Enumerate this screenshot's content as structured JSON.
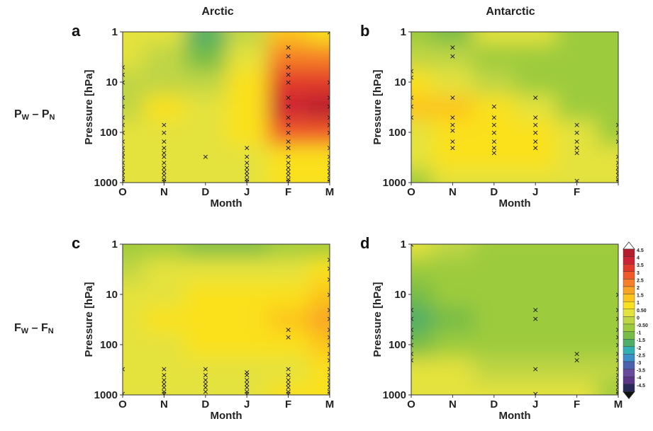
{
  "figure": {
    "col_titles": [
      "Arctic",
      "Antarctic"
    ],
    "row_labels": [
      {
        "main": "P",
        "sub1": "W",
        "sep": " – P",
        "sub2": "N"
      },
      {
        "main": "F",
        "sub1": "W",
        "sep": " – F",
        "sub2": "N"
      }
    ]
  },
  "colorbar": {
    "labels": [
      "4.5",
      "4",
      "3.5",
      "3",
      "2.5",
      "2",
      "1.5",
      "1",
      "0.50",
      "0",
      "-0.50",
      "-1",
      "-1.5",
      "-2",
      "-2.5",
      "-3",
      "-3.5",
      "-4",
      "-4.5"
    ],
    "colors": [
      "#b51d2e",
      "#cc2233",
      "#e23a2a",
      "#f0592a",
      "#f67f27",
      "#f9a523",
      "#fcc51e",
      "#fae11e",
      "#e4e23c",
      "#bfd544",
      "#9ccb3e",
      "#76bc46",
      "#4fae68",
      "#31b0b3",
      "#3a8fc8",
      "#4b63af",
      "#6a4a9c",
      "#5a3588",
      "#2a2a5a"
    ],
    "top_arrow": "#ffffff",
    "bottom_arrow": "#111111",
    "zero_contour_color": "#ffffff"
  },
  "chart_data": [
    {
      "type": "heatmap",
      "panel_label": "a",
      "region": "Arctic",
      "quantity": "P",
      "xlabel": "Month",
      "ylabel": "Pressure [hPa]",
      "x_ticks": [
        "O",
        "N",
        "D",
        "J",
        "F",
        "M"
      ],
      "y_ticks": [
        "1",
        "10",
        "100",
        "1000"
      ],
      "y_scale": "log-reversed",
      "ylim": [
        1000,
        1
      ],
      "cells": [
        [
          0.3,
          0.3,
          -1.5,
          0.2,
          1.5,
          1.0
        ],
        [
          0.3,
          0.2,
          -1.0,
          0.6,
          2.5,
          2.5
        ],
        [
          0.2,
          0.2,
          0.0,
          1.2,
          3.5,
          3.5
        ],
        [
          0.2,
          1.0,
          0.3,
          1.0,
          4.0,
          4.5
        ],
        [
          0.3,
          0.3,
          0.3,
          0.8,
          3.0,
          3.0
        ],
        [
          0.3,
          0.3,
          0.3,
          0.5,
          1.0,
          1.0
        ],
        [
          0.4,
          0.4,
          0.4,
          0.5,
          0.8,
          0.8
        ]
      ],
      "cross_marks": [
        {
          "month": "O",
          "pressures": [
            5,
            7,
            10,
            20,
            30,
            50,
            70,
            100,
            150,
            200,
            250,
            300,
            400,
            500,
            600,
            700,
            850,
            1000
          ]
        },
        {
          "month": "N",
          "pressures": [
            70,
            100,
            150,
            200,
            250,
            300,
            400,
            500,
            600,
            700,
            850,
            1000
          ]
        },
        {
          "month": "D",
          "pressures": [
            300
          ]
        },
        {
          "month": "J",
          "pressures": [
            200,
            300,
            400,
            500,
            600,
            700,
            850,
            1000
          ]
        },
        {
          "month": "F",
          "pressures": [
            2,
            3,
            5,
            7,
            10,
            20,
            30,
            50,
            70,
            100,
            150,
            200,
            300,
            400,
            500,
            600,
            700,
            850,
            1000
          ]
        },
        {
          "month": "M",
          "pressures": [
            1,
            10,
            20,
            30,
            50,
            70,
            100,
            200,
            300,
            400,
            500,
            600,
            700,
            850,
            1000
          ]
        }
      ]
    },
    {
      "type": "heatmap",
      "panel_label": "b",
      "region": "Antarctic",
      "quantity": "P",
      "xlabel": "Month",
      "ylabel": "Pressure [hPa]",
      "x_ticks": [
        "O",
        "N",
        "D",
        "J",
        "F",
        ""
      ],
      "y_ticks": [
        "1",
        "10",
        "100",
        "1000"
      ],
      "y_scale": "log-reversed",
      "ylim": [
        1000,
        1
      ],
      "cells": [
        [
          -0.6,
          -0.8,
          0.3,
          0.3,
          -0.5,
          -0.5
        ],
        [
          0.2,
          0.0,
          -0.6,
          -0.6,
          -0.6,
          -0.6
        ],
        [
          1.2,
          0.6,
          0.2,
          -0.6,
          -0.6,
          -0.6
        ],
        [
          1.7,
          1.4,
          1.0,
          0.6,
          -0.6,
          -0.6
        ],
        [
          0.6,
          1.2,
          1.2,
          0.8,
          0.6,
          -0.6
        ],
        [
          0.6,
          0.8,
          0.8,
          0.8,
          0.6,
          0.3
        ],
        [
          -0.6,
          0.3,
          0.4,
          0.4,
          0.4,
          0.4
        ]
      ],
      "cross_marks": [
        {
          "month": "O",
          "pressures": [
            6,
            8,
            20,
            30,
            50
          ]
        },
        {
          "month": "N",
          "pressures": [
            2,
            3,
            20,
            50,
            70,
            90,
            150,
            200
          ]
        },
        {
          "month": "D",
          "pressures": [
            30,
            50,
            70,
            100,
            150,
            200,
            250
          ]
        },
        {
          "month": "J",
          "pressures": [
            20,
            50,
            70,
            100,
            150,
            200
          ]
        },
        {
          "month": "F",
          "pressures": [
            70,
            100,
            150,
            200,
            250,
            900
          ]
        },
        {
          "month": "M",
          "pressures": [
            70,
            100,
            150,
            300,
            400,
            500,
            600,
            700,
            850,
            1000
          ]
        }
      ]
    },
    {
      "type": "heatmap",
      "panel_label": "c",
      "region": "Arctic",
      "quantity": "F",
      "xlabel": "Month",
      "ylabel": "Pressure [hPa]",
      "x_ticks": [
        "O",
        "N",
        "D",
        "J",
        "F",
        "M"
      ],
      "y_ticks": [
        "1",
        "10",
        "100",
        "1000"
      ],
      "y_scale": "log-reversed",
      "ylim": [
        1000,
        1
      ],
      "cells": [
        [
          -0.6,
          -0.6,
          -1.0,
          -1.0,
          -0.6,
          -0.6
        ],
        [
          0.0,
          0.3,
          0.3,
          0.3,
          0.4,
          0.8
        ],
        [
          0.3,
          0.5,
          1.0,
          0.8,
          1.0,
          1.5
        ],
        [
          0.3,
          1.0,
          1.2,
          1.2,
          1.5,
          2.2
        ],
        [
          0.3,
          0.6,
          0.8,
          0.8,
          1.0,
          1.5
        ],
        [
          0.3,
          0.3,
          0.3,
          0.3,
          0.6,
          1.0
        ],
        [
          0.4,
          0.3,
          0.6,
          0.6,
          1.2,
          0.8
        ]
      ],
      "cross_marks": [
        {
          "month": "O",
          "pressures": [
            300,
            1000
          ]
        },
        {
          "month": "N",
          "pressures": [
            300,
            400,
            500,
            600,
            700,
            850,
            1000
          ]
        },
        {
          "month": "D",
          "pressures": [
            300,
            400,
            500,
            600,
            700,
            850
          ]
        },
        {
          "month": "J",
          "pressures": [
            350,
            400,
            500,
            600,
            700,
            850,
            1000
          ]
        },
        {
          "month": "F",
          "pressures": [
            50,
            70,
            300,
            400,
            500,
            600,
            700,
            850,
            1000
          ]
        },
        {
          "month": "M",
          "pressures": [
            2,
            3,
            5,
            10,
            20,
            30,
            50,
            70,
            100,
            150,
            200,
            300,
            400,
            500,
            600,
            700,
            850,
            1000
          ]
        }
      ]
    },
    {
      "type": "heatmap",
      "panel_label": "d",
      "region": "Antarctic",
      "quantity": "F",
      "xlabel": "Month",
      "ylabel": "Pressure [hPa]",
      "x_ticks": [
        "O",
        "N",
        "D",
        "J",
        "F",
        "M"
      ],
      "y_ticks": [
        "1",
        "10",
        "100",
        "1000"
      ],
      "y_scale": "log-reversed",
      "ylim": [
        1000,
        1
      ],
      "cells": [
        [
          0.3,
          0.0,
          -0.6,
          -0.6,
          -0.6,
          -0.6
        ],
        [
          -0.6,
          -0.6,
          -0.6,
          -0.6,
          -0.6,
          -0.6
        ],
        [
          -1.2,
          -0.6,
          -0.6,
          -0.6,
          -0.6,
          -0.6
        ],
        [
          -1.5,
          -0.8,
          -0.6,
          -0.6,
          -0.6,
          -0.6
        ],
        [
          -0.8,
          -0.6,
          -0.6,
          -0.6,
          -0.6,
          -0.6
        ],
        [
          0.3,
          0.3,
          0.2,
          0.2,
          0.2,
          0.2
        ],
        [
          0.3,
          0.3,
          0.3,
          0.3,
          0.3,
          -0.6
        ]
      ],
      "cross_marks": [
        {
          "month": "O",
          "pressures": [
            1,
            20,
            30,
            50,
            70,
            100,
            150,
            200
          ]
        },
        {
          "month": "J",
          "pressures": [
            20,
            30,
            300,
            1000
          ]
        },
        {
          "month": "F",
          "pressures": [
            150,
            200
          ]
        },
        {
          "month": "M",
          "pressures": [
            10,
            20,
            30,
            50,
            70,
            100,
            150,
            200,
            300,
            400,
            500,
            600,
            700,
            850,
            1000
          ]
        }
      ]
    }
  ]
}
